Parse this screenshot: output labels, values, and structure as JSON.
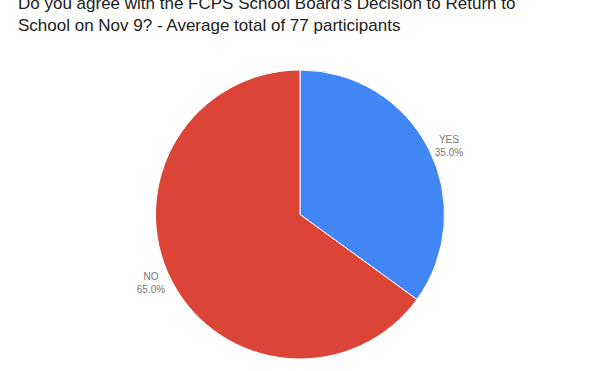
{
  "chart_data": {
    "type": "pie",
    "title": "Do you agree with the FCPS School Board's Decision to Return to School on Nov 9? - Average total of 77 participants",
    "categories": [
      "YES",
      "NO"
    ],
    "values": [
      35,
      65
    ],
    "colors": [
      "#4285f4",
      "#db4437"
    ],
    "data_labels": true,
    "value_labels": [
      "35.0%",
      "65.0%"
    ]
  }
}
